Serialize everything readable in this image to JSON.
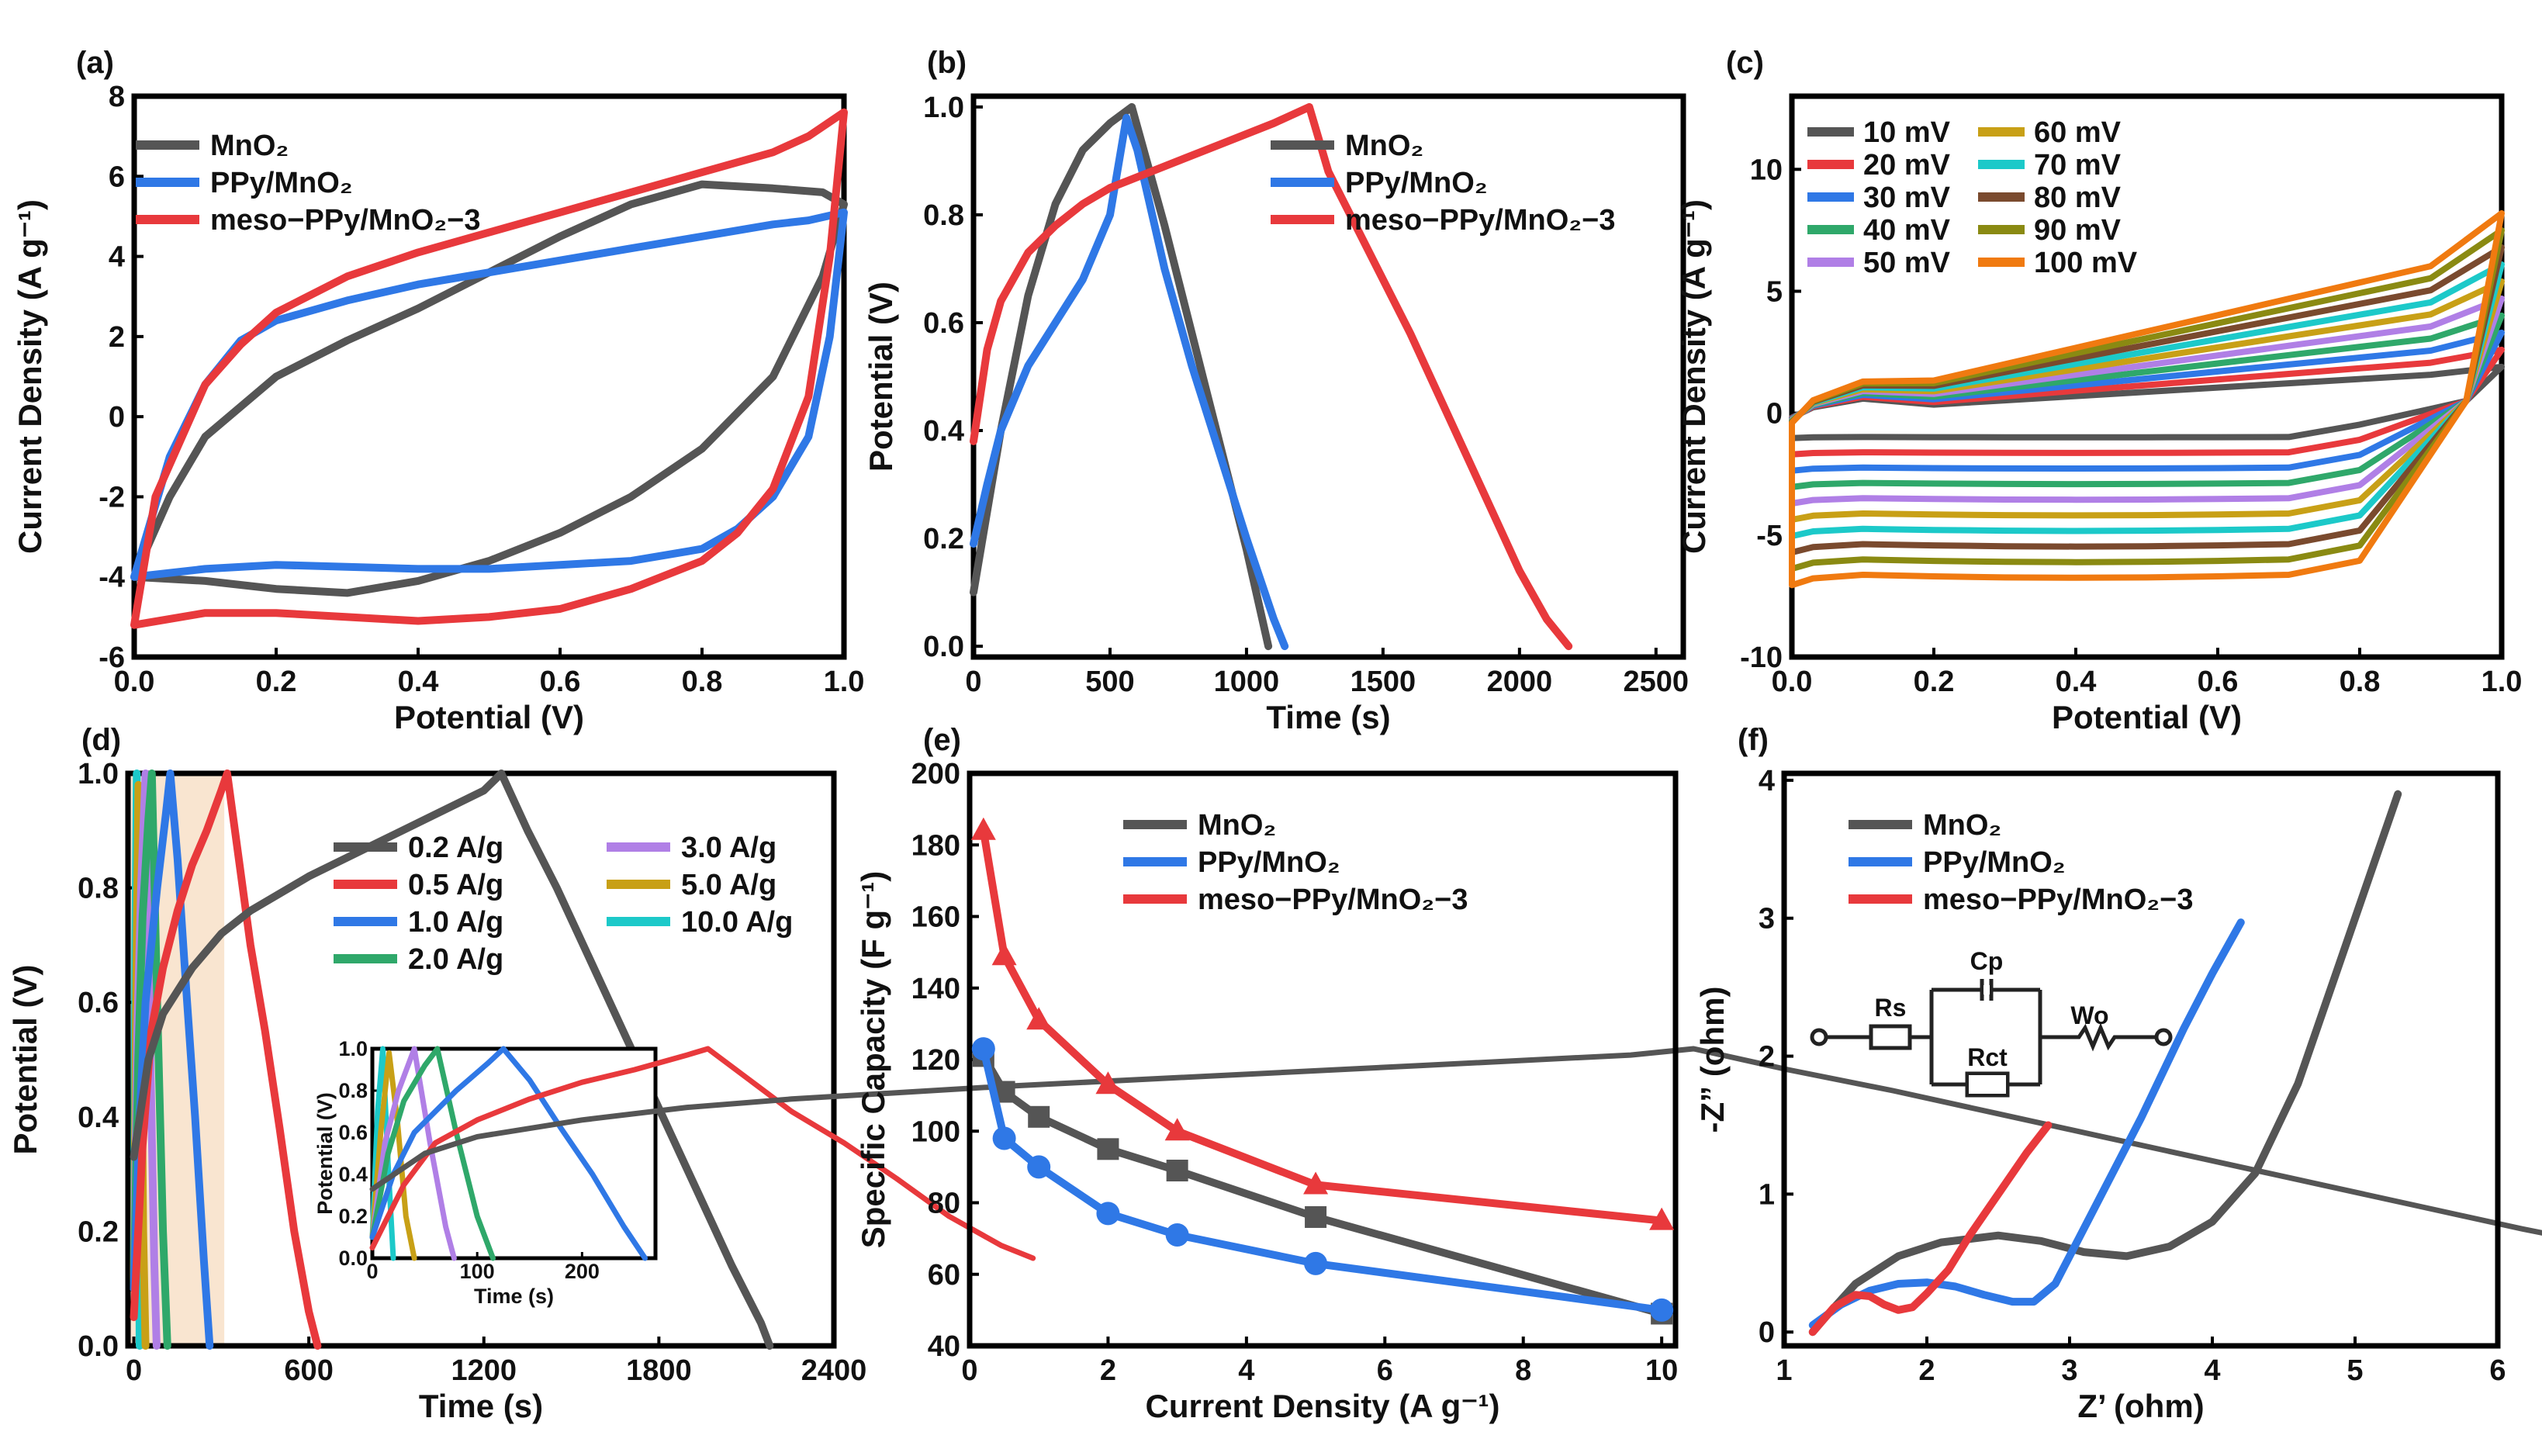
{
  "chart_data": [
    {
      "id": "a",
      "type": "line",
      "panel_label": "(a)",
      "xlabel": "Potential (V)",
      "ylabel": "Current Density (A g⁻¹)",
      "xlim": [
        0,
        1.0
      ],
      "ylim": [
        -6,
        8
      ],
      "xticks": [
        "0.0",
        "0.2",
        "0.4",
        "0.6",
        "0.8",
        "1.0"
      ],
      "yticks": [
        "-6",
        "-4",
        "-2",
        "0",
        "2",
        "4",
        "6",
        "8"
      ],
      "legend": [
        "MnO₂",
        "PPy/MnO₂",
        "meso−PPy/MnO₂−3"
      ],
      "series": [
        {
          "name": "MnO₂",
          "color": "#555555",
          "x": [
            0,
            0.05,
            0.1,
            0.2,
            0.3,
            0.4,
            0.5,
            0.6,
            0.7,
            0.8,
            0.9,
            0.97,
            1.0,
            0.97,
            0.9,
            0.8,
            0.7,
            0.6,
            0.5,
            0.4,
            0.3,
            0.2,
            0.1,
            0.0
          ],
          "y": [
            -4.0,
            -2.0,
            -0.5,
            1.0,
            1.9,
            2.7,
            3.6,
            4.5,
            5.3,
            5.8,
            5.7,
            5.6,
            5.3,
            3.5,
            1.0,
            -0.8,
            -2.0,
            -2.9,
            -3.6,
            -4.1,
            -4.4,
            -4.3,
            -4.1,
            -4.0
          ]
        },
        {
          "name": "PPy/MnO₂",
          "color": "#2f78e6",
          "x": [
            0,
            0.05,
            0.1,
            0.15,
            0.2,
            0.3,
            0.4,
            0.5,
            0.6,
            0.7,
            0.8,
            0.9,
            0.95,
            1.0,
            0.98,
            0.95,
            0.9,
            0.85,
            0.8,
            0.7,
            0.6,
            0.5,
            0.4,
            0.3,
            0.2,
            0.1,
            0.0
          ],
          "y": [
            -4.0,
            -1.0,
            0.8,
            1.9,
            2.4,
            2.9,
            3.3,
            3.6,
            3.9,
            4.2,
            4.5,
            4.8,
            4.9,
            5.1,
            2.0,
            -0.5,
            -2.0,
            -2.8,
            -3.3,
            -3.6,
            -3.7,
            -3.8,
            -3.8,
            -3.75,
            -3.7,
            -3.8,
            -4.0
          ]
        },
        {
          "name": "meso−PPy/MnO₂−3",
          "color": "#e8393c",
          "x": [
            0,
            0.03,
            0.1,
            0.15,
            0.2,
            0.3,
            0.4,
            0.5,
            0.6,
            0.7,
            0.8,
            0.9,
            0.95,
            1.0,
            0.98,
            0.95,
            0.9,
            0.85,
            0.8,
            0.7,
            0.6,
            0.5,
            0.4,
            0.3,
            0.2,
            0.1,
            0.0
          ],
          "y": [
            -5.2,
            -2.0,
            0.8,
            1.8,
            2.6,
            3.5,
            4.1,
            4.6,
            5.1,
            5.6,
            6.1,
            6.6,
            7.0,
            7.6,
            4.0,
            0.5,
            -1.8,
            -2.9,
            -3.6,
            -4.3,
            -4.8,
            -5.0,
            -5.1,
            -5.0,
            -4.9,
            -4.9,
            -5.2
          ]
        }
      ]
    },
    {
      "id": "b",
      "type": "line",
      "panel_label": "(b)",
      "xlabel": "Time (s)",
      "ylabel": "Potential (V)",
      "xlim": [
        0,
        2600
      ],
      "ylim": [
        -0.02,
        1.02
      ],
      "xticks": [
        "0",
        "500",
        "1000",
        "1500",
        "2000",
        "2500"
      ],
      "yticks": [
        "0.0",
        "0.2",
        "0.4",
        "0.6",
        "0.8",
        "1.0"
      ],
      "legend": [
        "MnO₂",
        "PPy/MnO₂",
        "meso−PPy/MnO₂−3"
      ],
      "series": [
        {
          "name": "MnO₂",
          "color": "#555555",
          "x": [
            0,
            100,
            200,
            300,
            400,
            500,
            580,
            700,
            800,
            900,
            1000,
            1080
          ],
          "y": [
            0.1,
            0.4,
            0.65,
            0.82,
            0.92,
            0.97,
            1.0,
            0.78,
            0.58,
            0.38,
            0.18,
            0.0
          ]
        },
        {
          "name": "PPy/MnO₂",
          "color": "#2f78e6",
          "x": [
            0,
            50,
            100,
            200,
            300,
            400,
            500,
            560,
            600,
            700,
            800,
            900,
            1000,
            1100,
            1140
          ],
          "y": [
            0.19,
            0.3,
            0.4,
            0.52,
            0.6,
            0.68,
            0.8,
            0.98,
            0.92,
            0.7,
            0.52,
            0.36,
            0.2,
            0.05,
            0.0
          ]
        },
        {
          "name": "meso−PPy/MnO₂−3",
          "color": "#e8393c",
          "x": [
            0,
            50,
            100,
            200,
            300,
            400,
            500,
            700,
            900,
            1100,
            1230,
            1300,
            1400,
            1500,
            1600,
            1700,
            1800,
            1900,
            2000,
            2100,
            2180
          ],
          "y": [
            0.38,
            0.55,
            0.64,
            0.73,
            0.78,
            0.82,
            0.85,
            0.89,
            0.93,
            0.97,
            1.0,
            0.88,
            0.78,
            0.68,
            0.58,
            0.47,
            0.36,
            0.25,
            0.14,
            0.05,
            0.0
          ]
        }
      ]
    },
    {
      "id": "c",
      "type": "line",
      "panel_label": "(c)",
      "xlabel": "Potential (V)",
      "ylabel": "Current Density (A g⁻¹)",
      "xlim": [
        0,
        1.0
      ],
      "ylim": [
        -10,
        13
      ],
      "xticks": [
        "0.0",
        "0.2",
        "0.4",
        "0.6",
        "0.8",
        "1.0"
      ],
      "yticks": [
        "-10",
        "-5",
        "0",
        "5",
        "10"
      ],
      "legend": [
        "10 mV",
        "20 mV",
        "30 mV",
        "40 mV",
        "50 mV",
        "60 mV",
        "70 mV",
        "80 mV",
        "90 mV",
        "100 mV"
      ],
      "series": [
        {
          "name": "10 mV",
          "color": "#555555",
          "scale": 1
        },
        {
          "name": "20 mV",
          "color": "#e8393c",
          "scale": 2
        },
        {
          "name": "30 mV",
          "color": "#2f78e6",
          "scale": 3
        },
        {
          "name": "40 mV",
          "color": "#2fa86a",
          "scale": 4
        },
        {
          "name": "50 mV",
          "color": "#b07fe6",
          "scale": 5
        },
        {
          "name": "60 mV",
          "color": "#c8a016",
          "scale": 6
        },
        {
          "name": "70 mV",
          "color": "#1cc9c9",
          "scale": 7
        },
        {
          "name": "80 mV",
          "color": "#7a4a2e",
          "scale": 8
        },
        {
          "name": "90 mV",
          "color": "#8a8a12",
          "scale": 9
        },
        {
          "name": "100 mV",
          "color": "#f07a10",
          "scale": 10
        }
      ]
    },
    {
      "id": "d",
      "type": "line",
      "panel_label": "(d)",
      "xlabel": "Time (s)",
      "ylabel": "Potential (V)",
      "xlim": [
        -20,
        2400
      ],
      "ylim": [
        0,
        1.0
      ],
      "xticks": [
        "0",
        "600",
        "1200",
        "1800",
        "2400"
      ],
      "yticks": [
        "0.0",
        "0.2",
        "0.4",
        "0.6",
        "0.8",
        "1.0"
      ],
      "highlight": [
        -20,
        310
      ],
      "legend": [
        "0.2 A/g",
        "0.5 A/g",
        "1.0 A/g",
        "2.0 A/g",
        "3.0 A/g",
        "5.0 A/g",
        "10.0 A/g"
      ],
      "series": [
        {
          "name": "0.2 A/g",
          "color": "#555555",
          "x": [
            0,
            50,
            100,
            200,
            300,
            400,
            600,
            800,
            1000,
            1200,
            1260,
            1350,
            1450,
            1550,
            1650,
            1750,
            1850,
            1950,
            2050,
            2150,
            2180
          ],
          "y": [
            0.33,
            0.5,
            0.58,
            0.66,
            0.72,
            0.76,
            0.82,
            0.87,
            0.92,
            0.97,
            1.0,
            0.9,
            0.8,
            0.69,
            0.58,
            0.47,
            0.36,
            0.25,
            0.14,
            0.04,
            0.0
          ]
        },
        {
          "name": "0.5 A/g",
          "color": "#e8393c",
          "x": [
            0,
            30,
            60,
            100,
            150,
            200,
            250,
            300,
            320,
            360,
            400,
            450,
            500,
            550,
            600,
            630
          ],
          "y": [
            0.05,
            0.35,
            0.55,
            0.66,
            0.76,
            0.84,
            0.9,
            0.97,
            1.0,
            0.85,
            0.7,
            0.55,
            0.38,
            0.2,
            0.06,
            0.0
          ]
        },
        {
          "name": "1.0 A/g",
          "color": "#2f78e6",
          "x": [
            0,
            20,
            40,
            80,
            110,
            125,
            150,
            180,
            210,
            240,
            260
          ],
          "y": [
            0.1,
            0.4,
            0.6,
            0.8,
            0.93,
            1.0,
            0.85,
            0.62,
            0.4,
            0.15,
            0.0
          ]
        },
        {
          "name": "2.0 A/g",
          "color": "#2fa86a",
          "x": [
            0,
            15,
            30,
            50,
            62,
            80,
            100,
            115
          ],
          "y": [
            0.1,
            0.5,
            0.75,
            0.92,
            1.0,
            0.6,
            0.2,
            0.0
          ]
        },
        {
          "name": "3.0 A/g",
          "color": "#b07fe6",
          "x": [
            0,
            12,
            25,
            40,
            55,
            70,
            78
          ],
          "y": [
            0.1,
            0.55,
            0.8,
            1.0,
            0.55,
            0.15,
            0.0
          ]
        },
        {
          "name": "5.0 A/g",
          "color": "#c8a016",
          "x": [
            0,
            8,
            16,
            24,
            32,
            40
          ],
          "y": [
            0.1,
            0.6,
            0.98,
            0.65,
            0.2,
            0.0
          ]
        },
        {
          "name": "10.0 A/g",
          "color": "#1cc9c9",
          "x": [
            0,
            5,
            10,
            15,
            20
          ],
          "y": [
            0.1,
            0.7,
            1.0,
            0.45,
            0.0
          ]
        }
      ],
      "inset": {
        "xlim": [
          0,
          270
        ],
        "ylim": [
          0,
          1.0
        ],
        "xticks": [
          "0",
          "100",
          "200"
        ],
        "yticks": [
          "0.0",
          "0.2",
          "0.4",
          "0.6",
          "0.8",
          "1.0"
        ],
        "xlabel": "Time (s)",
        "ylabel": "Potential (V)"
      }
    },
    {
      "id": "e",
      "type": "line",
      "panel_label": "(e)",
      "xlabel": "Current Density (A g⁻¹)",
      "ylabel": "Specific Capacity (F g⁻¹)",
      "xlim": [
        0,
        10.2
      ],
      "ylim": [
        40,
        200
      ],
      "xticks": [
        "0",
        "2",
        "4",
        "6",
        "8",
        "10"
      ],
      "yticks": [
        "40",
        "60",
        "80",
        "100",
        "120",
        "140",
        "160",
        "180",
        "200"
      ],
      "legend": [
        "MnO₂",
        "PPy/MnO₂",
        "meso−PPy/MnO₂−3"
      ],
      "series": [
        {
          "name": "MnO₂",
          "color": "#555555",
          "marker": "square",
          "x": [
            0.2,
            0.5,
            1,
            2,
            3,
            5,
            10
          ],
          "y": [
            121,
            111,
            104,
            95,
            89,
            76,
            49
          ]
        },
        {
          "name": "PPy/MnO₂",
          "color": "#2f78e6",
          "marker": "circle",
          "x": [
            0.2,
            0.5,
            1,
            2,
            3,
            5,
            10
          ],
          "y": [
            123,
            98,
            90,
            77,
            71,
            63,
            50
          ]
        },
        {
          "name": "meso−PPy/MnO₂−3",
          "color": "#e8393c",
          "marker": "triangle",
          "x": [
            0.2,
            0.5,
            1,
            2,
            3,
            5,
            10
          ],
          "y": [
            184,
            149,
            131,
            113,
            100,
            85,
            75
          ]
        }
      ]
    },
    {
      "id": "f",
      "type": "line",
      "panel_label": "(f)",
      "xlabel": "Z’ (ohm)",
      "ylabel": "-Z” (ohm)",
      "xlim": [
        1,
        6
      ],
      "ylim": [
        -0.1,
        4.05
      ],
      "xticks": [
        "1",
        "2",
        "3",
        "4",
        "5",
        "6"
      ],
      "yticks": [
        "0",
        "1",
        "2",
        "3",
        "4"
      ],
      "legend": [
        "MnO₂",
        "PPy/MnO₂",
        "meso−PPy/MnO₂−3"
      ],
      "circuit_labels": {
        "rs": "Rs",
        "cp": "Cp",
        "rct": "Rct",
        "wo": "Wo"
      },
      "series": [
        {
          "name": "MnO₂",
          "color": "#555555",
          "x": [
            1.2,
            1.3,
            1.5,
            1.8,
            2.1,
            2.5,
            2.8,
            3.1,
            3.4,
            3.7,
            4.0,
            4.3,
            4.6,
            4.9,
            5.1,
            5.3
          ],
          "y": [
            0.0,
            0.12,
            0.35,
            0.55,
            0.65,
            0.7,
            0.66,
            0.58,
            0.55,
            0.62,
            0.8,
            1.15,
            1.8,
            2.7,
            3.3,
            3.9
          ]
        },
        {
          "name": "PPy/MnO₂",
          "color": "#2f78e6",
          "x": [
            1.2,
            1.4,
            1.6,
            1.8,
            2.0,
            2.2,
            2.4,
            2.6,
            2.75,
            2.9,
            3.0,
            3.2,
            3.5,
            3.8,
            4.0,
            4.2
          ],
          "y": [
            0.05,
            0.2,
            0.3,
            0.35,
            0.36,
            0.33,
            0.27,
            0.22,
            0.22,
            0.35,
            0.55,
            0.95,
            1.55,
            2.2,
            2.6,
            2.97
          ]
        },
        {
          "name": "meso−PPy/MnO₂−3",
          "color": "#e8393c",
          "x": [
            1.2,
            1.35,
            1.5,
            1.6,
            1.7,
            1.8,
            1.9,
            2.0,
            2.15,
            2.3,
            2.5,
            2.7,
            2.85
          ],
          "y": [
            0.0,
            0.18,
            0.27,
            0.26,
            0.2,
            0.16,
            0.18,
            0.28,
            0.45,
            0.7,
            1.0,
            1.3,
            1.5
          ]
        }
      ]
    }
  ]
}
